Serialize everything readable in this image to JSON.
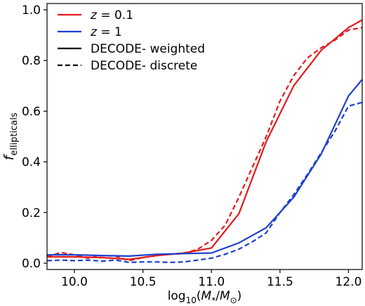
{
  "chart_data": {
    "type": "line",
    "xlabel": {
      "prefix": "log",
      "sub": "10",
      "open": "(",
      "M1": "M",
      "star": "*",
      "slash": "/",
      "M2": "M",
      "odot": "⊙",
      "close": ")"
    },
    "ylabel": {
      "main": "f",
      "sub": "ellipticals"
    },
    "xlim": [
      9.8,
      12.1
    ],
    "ylim": [
      -0.025,
      1.025
    ],
    "xticks": [
      "10.0",
      "10.5",
      "11.0",
      "11.5",
      "12.0"
    ],
    "yticks": [
      "0.0",
      "0.2",
      "0.4",
      "0.6",
      "0.8",
      "1.0"
    ],
    "grid": false,
    "legend_position": "top-left",
    "legend": [
      {
        "pre": "z",
        "post": " = 0.1",
        "color": "#e31a1c",
        "dash": "solid"
      },
      {
        "pre": "z",
        "post": " = 1",
        "color": "#1f3fcc",
        "dash": "solid"
      },
      {
        "pre": "",
        "post": "DECODE- weighted",
        "color": "#000000",
        "dash": "solid"
      },
      {
        "pre": "",
        "post": "DECODE- discrete",
        "color": "#000000",
        "dash": "dashed"
      }
    ],
    "series": [
      {
        "color": "#e31a1c",
        "dash": "solid",
        "x": [
          9.8,
          10.0,
          10.2,
          10.4,
          10.6,
          10.8,
          11.0,
          11.2,
          11.4,
          11.6,
          11.8,
          12.0,
          12.1
        ],
        "y": [
          0.025,
          0.025,
          0.022,
          0.015,
          0.03,
          0.04,
          0.06,
          0.195,
          0.48,
          0.7,
          0.84,
          0.93,
          0.96
        ]
      },
      {
        "color": "#e31a1c",
        "dash": "dashed",
        "x": [
          9.8,
          9.9,
          10.0,
          10.1,
          10.2,
          10.3,
          10.4,
          10.5,
          10.6,
          10.7,
          10.8,
          10.9,
          11.0,
          11.1,
          11.2,
          11.3,
          11.4,
          11.5,
          11.6,
          11.7,
          11.8,
          11.9,
          12.0,
          12.1
        ],
        "y": [
          0.025,
          0.042,
          0.033,
          0.02,
          0.03,
          0.028,
          0.01,
          0.022,
          0.03,
          0.035,
          0.038,
          0.055,
          0.09,
          0.15,
          0.26,
          0.38,
          0.5,
          0.64,
          0.74,
          0.81,
          0.85,
          0.88,
          0.92,
          0.93
        ]
      },
      {
        "color": "#1f3fcc",
        "dash": "solid",
        "x": [
          9.8,
          10.0,
          10.2,
          10.4,
          10.6,
          10.8,
          11.0,
          11.2,
          11.4,
          11.6,
          11.8,
          12.0,
          12.1
        ],
        "y": [
          0.033,
          0.033,
          0.03,
          0.028,
          0.035,
          0.038,
          0.04,
          0.08,
          0.14,
          0.26,
          0.43,
          0.66,
          0.725
        ]
      },
      {
        "color": "#1f3fcc",
        "dash": "dashed",
        "x": [
          9.8,
          9.9,
          10.0,
          10.1,
          10.2,
          10.3,
          10.4,
          10.5,
          10.6,
          10.7,
          10.8,
          10.9,
          11.0,
          11.1,
          11.2,
          11.3,
          11.4,
          11.5,
          11.6,
          11.7,
          11.8,
          11.9,
          12.0,
          12.1
        ],
        "y": [
          0.01,
          0.012,
          0.01,
          0.012,
          0.008,
          0.012,
          0.003,
          0.005,
          0.005,
          0.003,
          0.005,
          0.012,
          0.02,
          0.035,
          0.055,
          0.085,
          0.12,
          0.2,
          0.27,
          0.35,
          0.435,
          0.52,
          0.62,
          0.635
        ]
      }
    ]
  }
}
